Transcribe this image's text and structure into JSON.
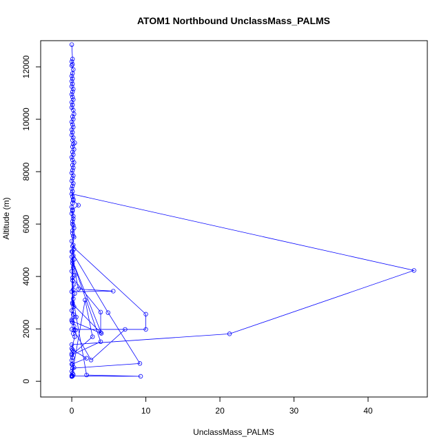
{
  "chart_data": {
    "type": "line",
    "title": "ATOM1 Northbound UnclassMass_PALMS",
    "xlabel": "UnclassMass_PALMS",
    "ylabel": "Altitude (m)",
    "xlim": [
      -4.2,
      48.0
    ],
    "ylim": [
      -600,
      13000
    ],
    "xticks": [
      0,
      10,
      20,
      30,
      40
    ],
    "yticks": [
      0,
      2000,
      4000,
      6000,
      8000,
      10000,
      12000
    ],
    "grid": false,
    "legend": "none",
    "series_color": "#0000ff",
    "marker": "open-circle",
    "series": [
      {
        "points": [
          [
            0.0,
            180
          ],
          [
            0.1,
            200
          ],
          [
            0.0,
            220
          ],
          [
            0.2,
            250
          ],
          [
            0.1,
            300
          ],
          [
            0.0,
            380
          ],
          [
            0.3,
            520
          ],
          [
            0.1,
            640
          ],
          [
            0.0,
            800
          ],
          [
            0.1,
            900
          ],
          [
            0.0,
            1050
          ],
          [
            0.2,
            1150
          ],
          [
            0.0,
            1250
          ],
          [
            0.4,
            1700
          ],
          [
            0.2,
            1820
          ],
          [
            0.5,
            1950
          ],
          [
            0.3,
            2100
          ],
          [
            0.1,
            2250
          ],
          [
            0.0,
            2350
          ],
          [
            0.6,
            2450
          ],
          [
            0.2,
            2550
          ],
          [
            0.0,
            2700
          ],
          [
            0.3,
            2850
          ],
          [
            0.1,
            3000
          ],
          [
            0.2,
            3150
          ],
          [
            0.4,
            3350
          ],
          [
            0.2,
            3500
          ],
          [
            0.3,
            3700
          ],
          [
            0.1,
            3850
          ],
          [
            0.4,
            4050
          ],
          [
            0.0,
            4200
          ],
          [
            0.2,
            4350
          ],
          [
            0.1,
            4500
          ],
          [
            0.3,
            4650
          ],
          [
            0.2,
            4800
          ],
          [
            0.1,
            4950
          ],
          [
            0.3,
            5050
          ],
          [
            0.2,
            5200
          ],
          [
            0.0,
            5350
          ],
          [
            0.3,
            5500
          ],
          [
            0.1,
            5650
          ],
          [
            0.3,
            5850
          ],
          [
            0.1,
            6000
          ],
          [
            0.2,
            6200
          ],
          [
            0.0,
            6400
          ],
          [
            0.1,
            6550
          ],
          [
            0.9,
            6720
          ],
          [
            0.2,
            6900
          ],
          [
            0.1,
            7050
          ],
          [
            0.0,
            7150
          ],
          [
            46.2,
            4230
          ],
          [
            21.3,
            1810
          ],
          [
            0.0,
            1400
          ],
          [
            0.1,
            1200
          ],
          [
            2.0,
            880
          ],
          [
            0.0,
            650
          ],
          [
            0.1,
            500
          ],
          [
            9.2,
            680
          ],
          [
            4.9,
            2620
          ],
          [
            0.0,
            4950
          ],
          [
            0.1,
            5150
          ],
          [
            10.0,
            2560
          ],
          [
            10.0,
            1980
          ],
          [
            0.0,
            1980
          ],
          [
            7.2,
            1980
          ],
          [
            2.6,
            810
          ],
          [
            0.3,
            1950
          ],
          [
            0.1,
            3950
          ],
          [
            3.9,
            2640
          ],
          [
            3.9,
            1860
          ],
          [
            0.1,
            2950
          ],
          [
            0.0,
            4750
          ],
          [
            0.9,
            3520
          ],
          [
            5.6,
            3440
          ],
          [
            0.0,
            3420
          ],
          [
            2.0,
            240
          ],
          [
            9.3,
            190
          ],
          [
            0.0,
            200
          ],
          [
            1.8,
            3100
          ],
          [
            2.8,
            1700
          ],
          [
            0.0,
            1000
          ],
          [
            3.9,
            1510
          ],
          [
            0.1,
            4600
          ],
          [
            4.0,
            1830
          ],
          [
            0.0,
            2300
          ],
          [
            0.2,
            5550
          ],
          [
            0.1,
            5750
          ],
          [
            0.2,
            5950
          ],
          [
            0.1,
            6100
          ],
          [
            0.2,
            6300
          ],
          [
            0.1,
            6500
          ],
          [
            0.0,
            6650
          ],
          [
            0.1,
            6800
          ],
          [
            0.2,
            6950
          ],
          [
            0.1,
            7250
          ],
          [
            0.0,
            7350
          ],
          [
            0.1,
            7450
          ],
          [
            0.2,
            7550
          ],
          [
            0.0,
            7650
          ],
          [
            0.1,
            7750
          ],
          [
            0.2,
            7850
          ],
          [
            0.0,
            7950
          ],
          [
            0.1,
            8050
          ],
          [
            0.2,
            8150
          ],
          [
            0.1,
            8250
          ],
          [
            0.3,
            8350
          ],
          [
            0.1,
            8450
          ],
          [
            0.0,
            8550
          ],
          [
            0.2,
            8650
          ],
          [
            0.1,
            8750
          ],
          [
            0.3,
            8850
          ],
          [
            0.1,
            8950
          ],
          [
            0.2,
            9050
          ],
          [
            0.4,
            9100
          ],
          [
            0.1,
            9200
          ],
          [
            0.2,
            9300
          ],
          [
            0.0,
            9400
          ],
          [
            0.1,
            9500
          ],
          [
            0.0,
            9600
          ],
          [
            0.2,
            9700
          ],
          [
            0.1,
            9800
          ],
          [
            0.0,
            9900
          ],
          [
            0.2,
            10000
          ],
          [
            0.1,
            10100
          ],
          [
            0.3,
            10200
          ],
          [
            0.2,
            10350
          ],
          [
            0.0,
            10450
          ],
          [
            0.1,
            10550
          ],
          [
            0.0,
            10650
          ],
          [
            0.2,
            10750
          ],
          [
            0.1,
            10850
          ],
          [
            0.0,
            10950
          ],
          [
            0.1,
            11050
          ],
          [
            0.2,
            11150
          ],
          [
            0.0,
            11250
          ],
          [
            0.1,
            11350
          ],
          [
            0.0,
            11450
          ],
          [
            0.1,
            11550
          ],
          [
            0.0,
            11650
          ],
          [
            0.1,
            11750
          ],
          [
            0.2,
            11900
          ],
          [
            0.0,
            12050
          ],
          [
            0.1,
            12100
          ],
          [
            0.0,
            12200
          ],
          [
            0.1,
            12300
          ],
          [
            0.0,
            12850
          ]
        ]
      }
    ]
  }
}
